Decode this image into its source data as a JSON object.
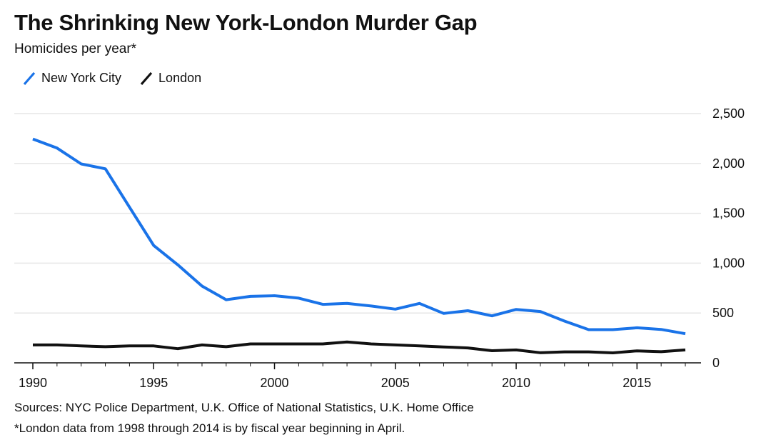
{
  "chart_data": {
    "type": "line",
    "title": "The Shrinking New York-London Murder Gap",
    "subtitle": "Homicides per year*",
    "xlabel": "",
    "ylabel": "",
    "x": [
      1990,
      1991,
      1992,
      1993,
      1994,
      1995,
      1996,
      1997,
      1998,
      1999,
      2000,
      2001,
      2002,
      2003,
      2004,
      2005,
      2006,
      2007,
      2008,
      2009,
      2010,
      2011,
      2012,
      2013,
      2014,
      2015,
      2016,
      2017
    ],
    "xlim": [
      1990,
      2017
    ],
    "ylim": [
      0,
      2500
    ],
    "x_ticks": [
      1990,
      1995,
      2000,
      2005,
      2010,
      2015
    ],
    "x_tick_labels": [
      "1990",
      "1995",
      "2000",
      "2005",
      "2010",
      "2015"
    ],
    "y_ticks": [
      0,
      500,
      1000,
      1500,
      2000,
      2500
    ],
    "y_tick_labels": [
      "0",
      "500",
      "1,000",
      "1,500",
      "2,000",
      "2,500"
    ],
    "grid": true,
    "legend_position": "top-left",
    "series": [
      {
        "name": "New York City",
        "color": "#1a73e8",
        "values": [
          2245,
          2154,
          1995,
          1946,
          1561,
          1177,
          983,
          770,
          633,
          667,
          673,
          649,
          587,
          597,
          570,
          539,
          596,
          496,
          523,
          471,
          536,
          515,
          419,
          333,
          333,
          352,
          335,
          292
        ]
      },
      {
        "name": "London",
        "color": "#111111",
        "values": [
          180,
          180,
          170,
          162,
          170,
          170,
          142,
          180,
          162,
          190,
          190,
          190,
          190,
          210,
          190,
          180,
          170,
          160,
          150,
          122,
          130,
          102,
          110,
          110,
          100,
          120,
          112,
          130
        ]
      }
    ]
  },
  "sources": "Sources: NYC Police Department, U.K. Office of National Statistics, U.K. Home Office",
  "footnote": "*London data from 1998 through 2014 is by fiscal year beginning in April."
}
